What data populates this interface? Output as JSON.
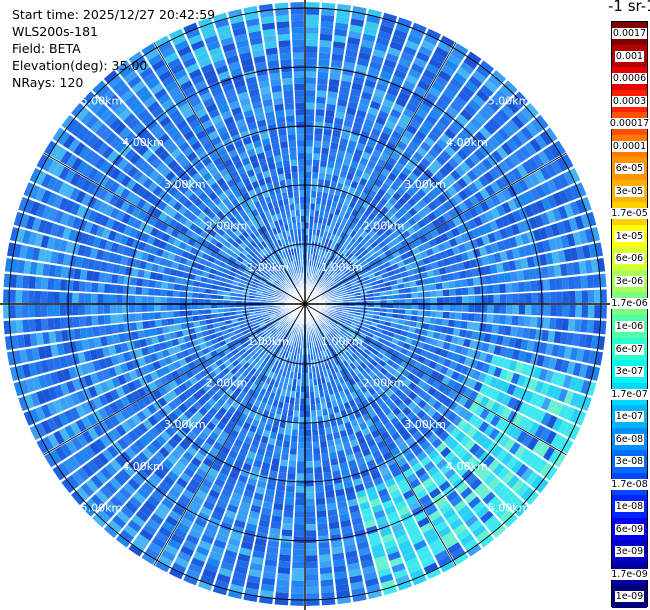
{
  "header": {
    "start_time": "Start time: 2025/12/27 20:42:59",
    "instrument": "WLS200s-181",
    "field": "Field: BETA",
    "elevation": "Elevation(deg): 35.00",
    "nrays": "NRays: 120"
  },
  "colorbar": {
    "unit_title": "-1 sr-1",
    "labels": [
      "0.0017",
      "0.001",
      "0.0006",
      "0.0003",
      "0.00017",
      "0.0001",
      "6e-05",
      "3e-05",
      "1.7e-05",
      "1e-05",
      "6e-06",
      "3e-06",
      "1.7e-06",
      "1e-06",
      "6e-07",
      "3e-07",
      "1.7e-07",
      "1e-07",
      "6e-08",
      "3e-08",
      "1.7e-08",
      "1e-08",
      "6e-09",
      "3e-09",
      "1.7e-09",
      "1e-09"
    ],
    "colors": [
      "#800000",
      "#b30000",
      "#e60000",
      "#ff2000",
      "#ff5000",
      "#ff7a00",
      "#ff9600",
      "#ffb000",
      "#ffd000",
      "#ffff00",
      "#d8ff30",
      "#a8ff5a",
      "#7cff80",
      "#50ffa8",
      "#28ffd0",
      "#00f8f0",
      "#00d8ff",
      "#00b4ff",
      "#0090ff",
      "#006cff",
      "#0048ff",
      "#0024ff",
      "#0000f0",
      "#0000c8",
      "#0000a0",
      "#00007a"
    ]
  },
  "ranges": {
    "labels": [
      "1.00km",
      "2.00km",
      "3.00km",
      "4.00km",
      "5.00km"
    ]
  }
}
